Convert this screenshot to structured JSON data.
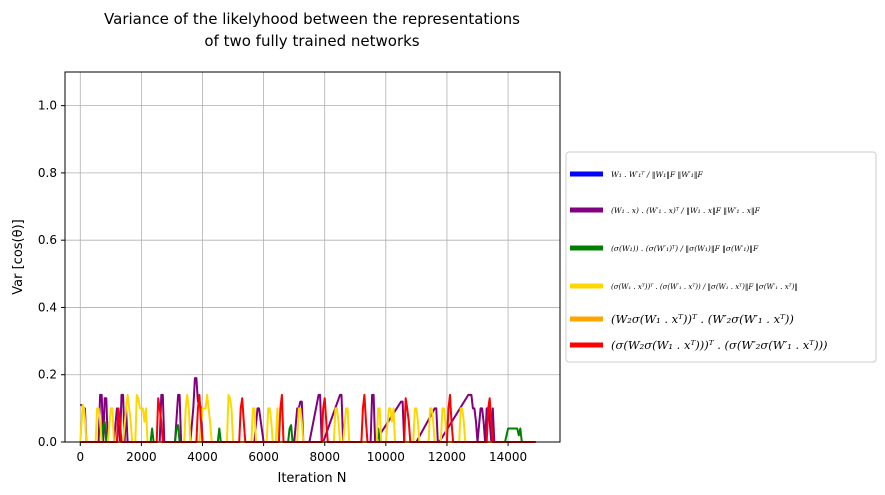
{
  "chart_data": {
    "type": "line",
    "title_lines": [
      "Variance of the likelyhood between the representations",
      "of  two fully trained networks"
    ],
    "xlabel": "Iteration N",
    "ylabel": "Var [cos(θ)]",
    "xlim": [
      -500,
      15700
    ],
    "ylim": [
      0,
      1.1
    ],
    "xticks": [
      0,
      2000,
      4000,
      6000,
      8000,
      10000,
      12000,
      14000
    ],
    "xtick_labels": [
      "0",
      "2000",
      "4000",
      "6000",
      "8000",
      "10000",
      "12000",
      "14000"
    ],
    "yticks": [
      0,
      0.2,
      0.4,
      0.6,
      0.8,
      1.0
    ],
    "ytick_labels": [
      "0.0",
      "0.2",
      "0.4",
      "0.6",
      "0.8",
      "1.0"
    ],
    "grid": true,
    "legend_position": "center-right, outside plot",
    "series": [
      {
        "name": "W₁ . W′₁ᵀ / ‖W₁‖F ‖W′₁‖F",
        "color": "#0000ff",
        "x": [
          0,
          14900
        ],
        "y": [
          0,
          0
        ]
      },
      {
        "name": "(W₁ . x) . (W′₁ . x)ᵀ / ‖W₁ . x‖F ‖W′₁ . x‖F",
        "color": "#800080",
        "x": [
          0,
          50,
          100,
          150,
          200,
          600,
          650,
          700,
          750,
          800,
          850,
          900,
          1000,
          1100,
          1200,
          1300,
          1350,
          1400,
          1450,
          1500,
          1550,
          2600,
          2650,
          2700,
          2750,
          3000,
          3100,
          3200,
          3250,
          3300,
          3600,
          3700,
          3750,
          3800,
          3850,
          3900,
          3950,
          4000,
          5500,
          5700,
          5800,
          5850,
          6000,
          6600,
          7000,
          7100,
          7150,
          7200,
          7250,
          7300,
          7500,
          7800,
          7850,
          7900,
          7950,
          8500,
          8550,
          8600,
          8650,
          9500,
          9550,
          9600,
          9650,
          10500,
          10550,
          10600,
          10650,
          11000,
          11600,
          11650,
          11700,
          11750,
          12700,
          12800,
          12850,
          12900,
          12950,
          13000,
          13100,
          13150,
          13200,
          13250,
          13300,
          13350,
          13400,
          13450,
          13500,
          13550,
          14900
        ],
        "y": [
          0.11,
          0.11,
          0.1,
          0.1,
          0,
          0,
          0.14,
          0.14,
          0,
          0.13,
          0.13,
          0,
          0,
          0,
          0.1,
          0,
          0.14,
          0.14,
          0,
          0.1,
          0,
          0,
          0.14,
          0.14,
          0,
          0,
          0,
          0.14,
          0.14,
          0,
          0,
          0.1,
          0.19,
          0.19,
          0.12,
          0.12,
          0.1,
          0,
          0,
          0,
          0.1,
          0.1,
          0,
          0,
          0,
          0.1,
          0.1,
          0.12,
          0.12,
          0,
          0,
          0.14,
          0.14,
          0,
          0,
          0.14,
          0.14,
          0,
          0,
          0,
          0.14,
          0.14,
          0,
          0.12,
          0.12,
          0,
          0,
          0,
          0.1,
          0.1,
          0,
          0,
          0.14,
          0.14,
          0.1,
          0.1,
          0.06,
          0,
          0.1,
          0.1,
          0.06,
          0,
          0.1,
          0.1,
          0.06,
          0,
          0.1,
          0,
          0
        ]
      },
      {
        "name": "(σ(W₁)) . (σ(W′₁)ᵀ) / ‖σ(W₁)‖F ‖σ(W′₁)‖F",
        "color": "#008000",
        "x": [
          0,
          700,
          750,
          800,
          850,
          2300,
          2350,
          2400,
          3100,
          3150,
          3200,
          3250,
          4500,
          4550,
          4600,
          6800,
          6850,
          6900,
          6950,
          9700,
          9750,
          9800,
          13900,
          14000,
          14050,
          14300,
          14350,
          14400,
          14450,
          14900
        ],
        "y": [
          0,
          0,
          0.05,
          0.06,
          0,
          0,
          0.04,
          0,
          0,
          0.04,
          0.05,
          0,
          0,
          0.04,
          0,
          0,
          0.04,
          0.05,
          0,
          0,
          0.04,
          0,
          0,
          0.04,
          0.04,
          0.04,
          0.02,
          0.04,
          0,
          0
        ]
      },
      {
        "name": "(σ(W₁ . xᵀ))ᵀ . (σ(W′₁ . xᵀ)) / ‖σ(W₁ . xᵀ)‖F ‖σ(W′₁ . xᵀ)‖",
        "color": "#ffd700",
        "x": [
          0,
          80,
          120,
          160,
          200,
          500,
          550,
          600,
          650,
          700,
          900,
          1000,
          1050,
          1100,
          1400,
          1500,
          1550,
          1600,
          1650,
          1700,
          1800,
          1850,
          1900,
          1950,
          2000,
          2050,
          2100,
          2150,
          2200,
          3400,
          3450,
          3500,
          3550,
          3600,
          3900,
          4000,
          4100,
          4150,
          4200,
          4250,
          4300,
          4800,
          4850,
          4900,
          4950,
          5000,
          5600,
          5650,
          5700,
          5750,
          6100,
          6150,
          6200,
          6250,
          6300,
          6400,
          6450,
          6500,
          7100,
          7150,
          7200,
          7250,
          7300,
          8300,
          8350,
          8400,
          8450,
          8500,
          8600,
          8700,
          8750,
          8800,
          9700,
          9750,
          9800,
          9850,
          10000,
          10100,
          10150,
          10200,
          10250,
          10300,
          10900,
          10950,
          11000,
          11050,
          11100,
          11400,
          11450,
          11500,
          11550,
          11600,
          11800,
          11850,
          11900,
          11950,
          12000,
          12400,
          12450,
          12500,
          12550,
          12600,
          14900
        ],
        "y": [
          0,
          0.11,
          0.1,
          0.06,
          0,
          0,
          0.1,
          0.1,
          0.06,
          0,
          0,
          0.1,
          0.1,
          0,
          0,
          0.1,
          0.14,
          0.1,
          0.06,
          0,
          0,
          0.14,
          0.13,
          0.1,
          0.1,
          0.1,
          0.06,
          0.1,
          0,
          0,
          0.1,
          0.14,
          0.1,
          0,
          0,
          0.1,
          0.1,
          0.14,
          0.1,
          0.06,
          0,
          0,
          0.14,
          0.13,
          0.1,
          0,
          0,
          0.1,
          0.1,
          0,
          0,
          0.1,
          0.1,
          0.06,
          0,
          0,
          0.1,
          0,
          0,
          0.1,
          0.1,
          0.06,
          0,
          0,
          0.1,
          0.1,
          0.06,
          0,
          0,
          0.1,
          0.1,
          0,
          0,
          0.1,
          0.1,
          0,
          0,
          0.1,
          0.1,
          0.06,
          0.1,
          0,
          0,
          0.1,
          0.1,
          0.06,
          0,
          0,
          0.1,
          0.1,
          0.06,
          0,
          0,
          0.1,
          0.1,
          0.06,
          0,
          0,
          0.1,
          0.1,
          0.06,
          0,
          0
        ]
      },
      {
        "name": "(W₂σ(W₁ . xᵀ))ᵀ . (W′₂σ(W′₁ . xᵀ))",
        "color": "#ffa500",
        "x": [
          0,
          14900
        ],
        "y": [
          0,
          0
        ]
      },
      {
        "name": "(σ(W₂σ(W₁ . xᵀ)))ᵀ . (σ(W′₂σ(W′₁ . xᵀ)))",
        "color": "#ff0000",
        "x": [
          0,
          1200,
          1250,
          1300,
          1350,
          2500,
          2550,
          2600,
          2650,
          2700,
          3800,
          3850,
          3900,
          3950,
          4000,
          5200,
          5250,
          5300,
          5350,
          5400,
          6500,
          6550,
          6600,
          6650,
          7900,
          7950,
          8000,
          8050,
          8100,
          9200,
          9250,
          9300,
          9350,
          9400,
          10600,
          10650,
          10700,
          10750,
          10800,
          12000,
          12050,
          12100,
          12150,
          12200,
          13300,
          13350,
          13400,
          13450,
          13500,
          14900
        ],
        "y": [
          0,
          0,
          0.1,
          0.06,
          0,
          0,
          0.13,
          0.1,
          0.06,
          0,
          0,
          0.1,
          0.14,
          0.06,
          0,
          0,
          0.1,
          0.13,
          0.06,
          0,
          0,
          0.1,
          0.14,
          0,
          0,
          0.1,
          0.13,
          0.06,
          0,
          0,
          0.1,
          0.14,
          0.06,
          0,
          0,
          0.13,
          0.1,
          0.06,
          0,
          0,
          0.1,
          0.14,
          0.06,
          0,
          0,
          0.1,
          0.13,
          0.06,
          0,
          0
        ]
      }
    ]
  }
}
